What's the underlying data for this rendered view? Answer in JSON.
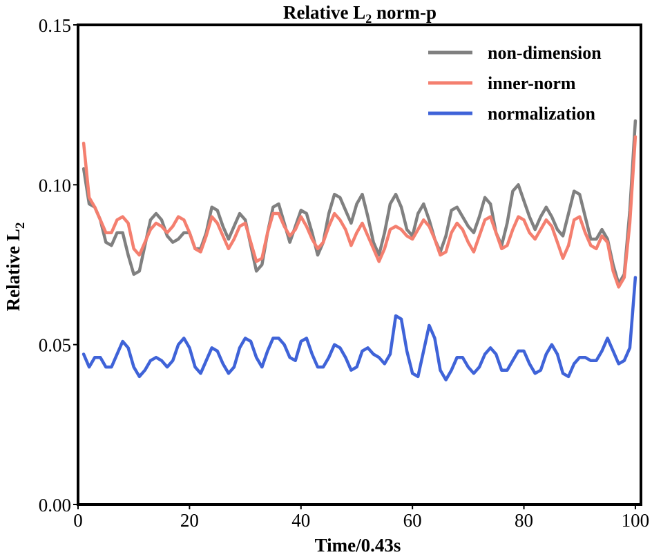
{
  "chart_data": {
    "type": "line",
    "title": {
      "main": "Relative L",
      "sub": "2",
      "tail": " norm-p"
    },
    "xlabel": "Time/0.43s",
    "ylabel": {
      "main": "Relative L",
      "sub": "2"
    },
    "xlim": [
      0,
      101
    ],
    "ylim": [
      0.0,
      0.15
    ],
    "xticks": [
      0,
      20,
      40,
      60,
      80,
      100
    ],
    "xtick_labels": [
      "0",
      "20",
      "40",
      "60",
      "80",
      "100"
    ],
    "yticks": [
      0.0,
      0.05,
      0.1,
      0.15
    ],
    "ytick_labels": [
      "0.00",
      "0.05",
      "0.10",
      "0.15"
    ],
    "grid": false,
    "legend_position": "top-right",
    "x": [
      1,
      2,
      3,
      4,
      5,
      6,
      7,
      8,
      9,
      10,
      11,
      12,
      13,
      14,
      15,
      16,
      17,
      18,
      19,
      20,
      21,
      22,
      23,
      24,
      25,
      26,
      27,
      28,
      29,
      30,
      31,
      32,
      33,
      34,
      35,
      36,
      37,
      38,
      39,
      40,
      41,
      42,
      43,
      44,
      45,
      46,
      47,
      48,
      49,
      50,
      51,
      52,
      53,
      54,
      55,
      56,
      57,
      58,
      59,
      60,
      61,
      62,
      63,
      64,
      65,
      66,
      67,
      68,
      69,
      70,
      71,
      72,
      73,
      74,
      75,
      76,
      77,
      78,
      79,
      80,
      81,
      82,
      83,
      84,
      85,
      86,
      87,
      88,
      89,
      90,
      91,
      92,
      93,
      94,
      95,
      96,
      97,
      98,
      99,
      100
    ],
    "series": [
      {
        "name": "non-dimension",
        "color": "#808080",
        "values": [
          0.105,
          0.094,
          0.093,
          0.089,
          0.082,
          0.081,
          0.085,
          0.085,
          0.078,
          0.072,
          0.073,
          0.081,
          0.089,
          0.091,
          0.089,
          0.084,
          0.082,
          0.083,
          0.085,
          0.085,
          0.08,
          0.08,
          0.085,
          0.093,
          0.092,
          0.087,
          0.083,
          0.087,
          0.091,
          0.089,
          0.081,
          0.073,
          0.075,
          0.085,
          0.093,
          0.094,
          0.088,
          0.082,
          0.087,
          0.092,
          0.091,
          0.085,
          0.078,
          0.082,
          0.091,
          0.097,
          0.096,
          0.092,
          0.088,
          0.094,
          0.097,
          0.09,
          0.082,
          0.078,
          0.085,
          0.094,
          0.097,
          0.093,
          0.086,
          0.084,
          0.091,
          0.094,
          0.089,
          0.083,
          0.079,
          0.084,
          0.092,
          0.093,
          0.09,
          0.087,
          0.085,
          0.09,
          0.096,
          0.094,
          0.085,
          0.081,
          0.088,
          0.098,
          0.1,
          0.095,
          0.09,
          0.086,
          0.09,
          0.093,
          0.09,
          0.086,
          0.084,
          0.091,
          0.098,
          0.097,
          0.09,
          0.083,
          0.083,
          0.086,
          0.083,
          0.075,
          0.069,
          0.072,
          0.092,
          0.12
        ]
      },
      {
        "name": "inner-norm",
        "color": "#f47f6f",
        "values": [
          0.113,
          0.096,
          0.093,
          0.089,
          0.085,
          0.085,
          0.089,
          0.09,
          0.088,
          0.08,
          0.078,
          0.082,
          0.086,
          0.088,
          0.087,
          0.085,
          0.087,
          0.09,
          0.089,
          0.085,
          0.08,
          0.079,
          0.084,
          0.09,
          0.088,
          0.084,
          0.08,
          0.083,
          0.087,
          0.088,
          0.082,
          0.076,
          0.077,
          0.085,
          0.091,
          0.091,
          0.087,
          0.084,
          0.086,
          0.09,
          0.087,
          0.083,
          0.08,
          0.082,
          0.087,
          0.091,
          0.089,
          0.086,
          0.081,
          0.085,
          0.088,
          0.084,
          0.08,
          0.076,
          0.08,
          0.086,
          0.087,
          0.086,
          0.084,
          0.083,
          0.086,
          0.089,
          0.087,
          0.083,
          0.078,
          0.079,
          0.085,
          0.088,
          0.086,
          0.082,
          0.079,
          0.084,
          0.089,
          0.09,
          0.085,
          0.08,
          0.081,
          0.086,
          0.09,
          0.089,
          0.085,
          0.083,
          0.086,
          0.089,
          0.087,
          0.082,
          0.077,
          0.081,
          0.089,
          0.09,
          0.085,
          0.081,
          0.08,
          0.084,
          0.082,
          0.073,
          0.068,
          0.071,
          0.088,
          0.115
        ]
      },
      {
        "name": "normalization",
        "color": "#3f63d8",
        "values": [
          0.047,
          0.043,
          0.046,
          0.046,
          0.043,
          0.043,
          0.047,
          0.051,
          0.049,
          0.043,
          0.04,
          0.042,
          0.045,
          0.046,
          0.045,
          0.043,
          0.045,
          0.05,
          0.052,
          0.049,
          0.043,
          0.041,
          0.045,
          0.049,
          0.048,
          0.044,
          0.041,
          0.043,
          0.049,
          0.052,
          0.051,
          0.046,
          0.043,
          0.048,
          0.052,
          0.052,
          0.05,
          0.046,
          0.045,
          0.051,
          0.052,
          0.047,
          0.043,
          0.043,
          0.046,
          0.05,
          0.049,
          0.046,
          0.042,
          0.043,
          0.048,
          0.049,
          0.047,
          0.046,
          0.044,
          0.047,
          0.059,
          0.058,
          0.048,
          0.041,
          0.04,
          0.048,
          0.056,
          0.052,
          0.042,
          0.039,
          0.042,
          0.046,
          0.046,
          0.043,
          0.041,
          0.043,
          0.047,
          0.049,
          0.047,
          0.042,
          0.042,
          0.045,
          0.048,
          0.048,
          0.044,
          0.041,
          0.042,
          0.047,
          0.05,
          0.047,
          0.041,
          0.04,
          0.044,
          0.046,
          0.046,
          0.045,
          0.045,
          0.048,
          0.052,
          0.048,
          0.044,
          0.045,
          0.049,
          0.071
        ]
      }
    ]
  }
}
